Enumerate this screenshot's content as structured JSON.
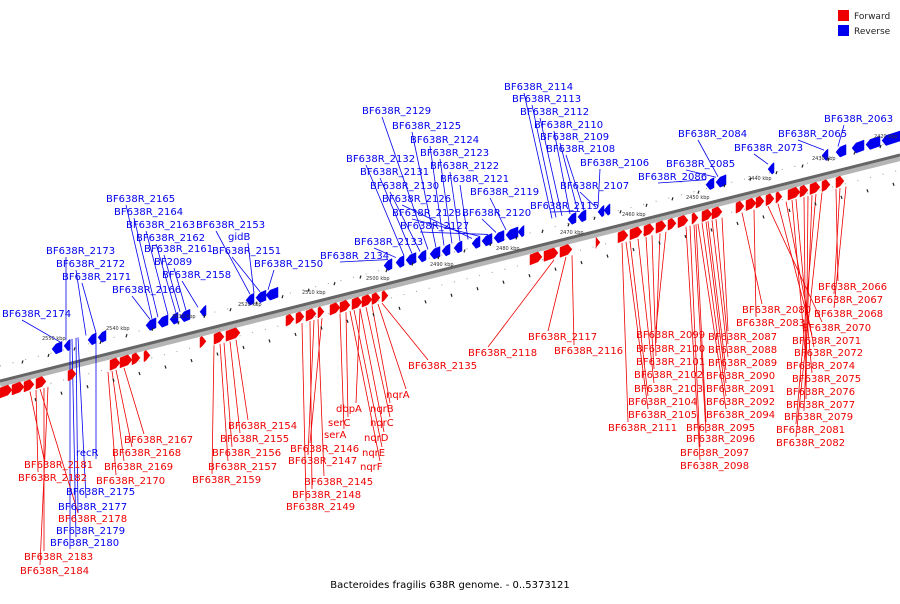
{
  "title": "Bacteroides fragilis 638R genome. - 0..5373121",
  "legend": [
    {
      "label": "Forward",
      "color": "#ee0000"
    },
    {
      "label": "Reverse",
      "color": "#0000ee"
    }
  ],
  "colors": {
    "forward": "#ee0000",
    "reverse": "#0000ee",
    "axis": "#777777"
  },
  "ticks": [
    "2550 kbp",
    "2540 kbp",
    "2530 kbp",
    "2520 kbp",
    "2510 kbp",
    "2500 kbp",
    "2490 kbp",
    "2480 kbp",
    "2470 kbp",
    "2460 kbp",
    "2450 kbp",
    "2440 kbp",
    "2430 kbp",
    "2420 kbp"
  ],
  "reverse_labels": [
    "BF638R_2174",
    "BF638R_2173",
    "BF638R_2172",
    "BF638R_2171",
    "BF638R_2166",
    "BF638R_2165",
    "BF638R_2164",
    "BF638R_2163",
    "BF638R_2162",
    "BF638R_2161",
    "BF2089",
    "BF638R_2158",
    "BF638R_2153",
    "gidB",
    "BF638R_2151",
    "BF638R_2150",
    "BF638R_2134",
    "BF638R_2133",
    "BF638R_2132",
    "BF638R_2131",
    "BF638R_2130",
    "BF638R_2129",
    "BF638R_2125",
    "BF638R_2124",
    "BF638R_2123",
    "BF638R_2122",
    "BF638R_2121",
    "BF638R_2126",
    "BF638R_2128",
    "BF638R_2127",
    "BF638R_2119",
    "BF638R_2120",
    "BF638R_2114",
    "BF638R_2113",
    "BF638R_2112",
    "BF638R_2110",
    "BF638R_2109",
    "BF638R_2108",
    "BF638R_2106",
    "BF638R_2107",
    "BF638R_2115",
    "BF638R_2084",
    "BF638R_2085",
    "BF638R_2086",
    "BF638R_2073",
    "BF638R_2065",
    "BF638R_2063",
    "recR",
    "BF638R_2175",
    "BF638R_2177",
    "BF638R_2179",
    "BF638R_2180"
  ],
  "forward_labels": [
    "BF638R_2181",
    "BF638R_2182",
    "BF638R_2183",
    "BF638R_2184",
    "BF638R_2178",
    "BF638R_2167",
    "BF638R_2168",
    "BF638R_2169",
    "BF638R_2170",
    "BF638R_2154",
    "BF638R_2155",
    "BF638R_2156",
    "BF638R_2157",
    "BF638R_2159",
    "serC",
    "BF638R_2146",
    "serA",
    "BF638R_2147",
    "BF638R_2145",
    "BF638R_2148",
    "BF638R_2149",
    "dbpA",
    "nqrB",
    "nqrA",
    "nqrC",
    "nqrD",
    "nqrE",
    "nqrF",
    "BF638R_2135",
    "BF638R_2118",
    "BF638R_2117",
    "BF638R_2116",
    "BF638R_2099",
    "BF638R_2100",
    "BF638R_2101",
    "BF638R_2102",
    "BF638R_2103",
    "BF638R_2104",
    "BF638R_2105",
    "BF638R_2111",
    "BF638R_2087",
    "BF638R_2088",
    "BF638R_2089",
    "BF638R_2090",
    "BF638R_2091",
    "BF638R_2092",
    "BF638R_2094",
    "BF638R_2095",
    "BF638R_2096",
    "BF638R_2097",
    "BF638R_2098",
    "BF638R_2080",
    "BF638R_2083",
    "BF638R_2070",
    "BF638R_2071",
    "BF638R_2072",
    "BF638R_2074",
    "BF638R_2075",
    "BF638R_2076",
    "BF638R_2077",
    "BF638R_2079",
    "BF638R_2081",
    "BF638R_2082",
    "BF638R_2066",
    "BF638R_2067",
    "BF638R_2068"
  ]
}
